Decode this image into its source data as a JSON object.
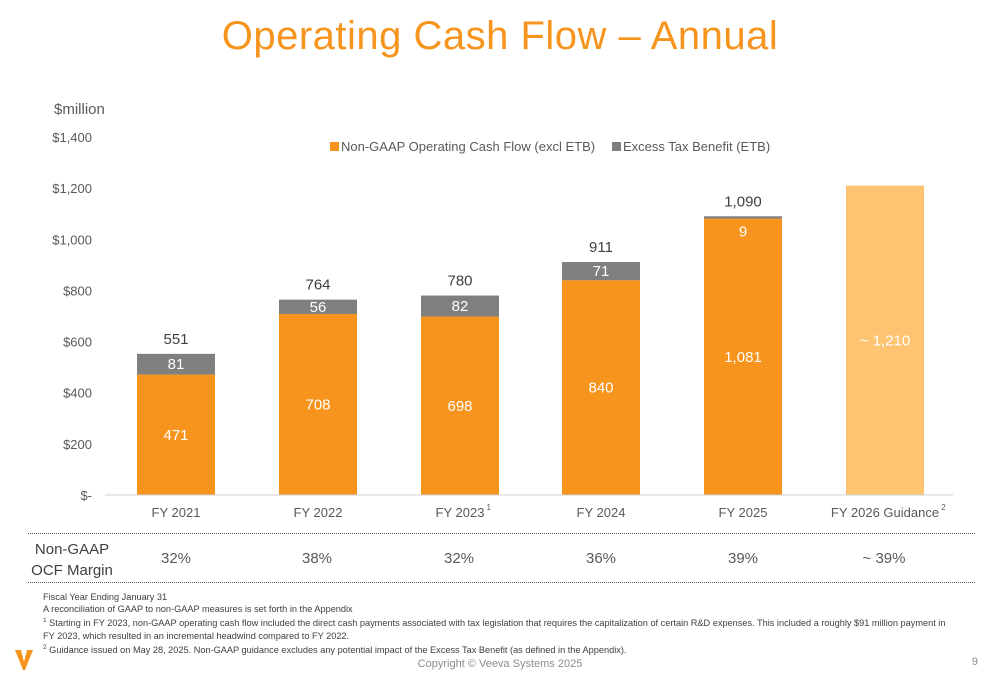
{
  "slide": {
    "title": "Operating Cash Flow – Annual",
    "copyright": "Copyright © Veeva Systems 2025",
    "page_number": "9"
  },
  "chart_data": {
    "type": "bar",
    "stacked": true,
    "unit_label": "$million",
    "categories": [
      "FY 2021",
      "FY 2022",
      "FY 2023",
      "FY 2024",
      "FY 2025",
      "FY 2026 Guidance"
    ],
    "category_superscripts": [
      "",
      "",
      "1",
      "",
      "",
      "2"
    ],
    "series": [
      {
        "name": "Non-GAAP Operating Cash Flow (excl ETB)",
        "color": "#F7941D",
        "values": [
          471,
          708,
          698,
          840,
          1081,
          1210
        ]
      },
      {
        "name": "Excess Tax Benefit (ETB)",
        "color": "#7F7F7F",
        "values": [
          81,
          56,
          82,
          71,
          9,
          null
        ]
      }
    ],
    "guidance_color": "#FFC471",
    "segment_labels": [
      [
        "471",
        "708",
        "698",
        "840",
        "1,081",
        "~ 1,210"
      ],
      [
        "81",
        "56",
        "82",
        "71",
        "9",
        ""
      ]
    ],
    "totals": [
      "551",
      "764",
      "780",
      "911",
      "1,090",
      ""
    ],
    "yticks": [
      "$-",
      "$200",
      "$400",
      "$600",
      "$800",
      "$1,000",
      "$1,200",
      "$1,400"
    ],
    "ylim": [
      0,
      1400
    ],
    "legend_position": "top",
    "grid": false
  },
  "margin_row": {
    "label_line1": "Non-GAAP",
    "label_line2": "OCF Margin",
    "values": [
      "32%",
      "38%",
      "32%",
      "36%",
      "39%",
      "~ 39%"
    ]
  },
  "notes": {
    "line1": "Fiscal Year Ending January 31",
    "line2": "A reconciliation of GAAP to non-GAAP measures is set forth in the Appendix",
    "note1_num": "1",
    "note1_text": " Starting in FY 2023, non-GAAP operating cash flow included the direct cash payments associated with tax legislation that requires the capitalization of certain R&D expenses. This included a roughly $91 million payment in FY 2023, which resulted in an incremental headwind compared to FY 2022.",
    "note2_num": "2",
    "note2_text": " Guidance issued on May 28, 2025. Non-GAAP guidance excludes any potential impact of the Excess Tax Benefit (as defined in the Appendix)."
  }
}
